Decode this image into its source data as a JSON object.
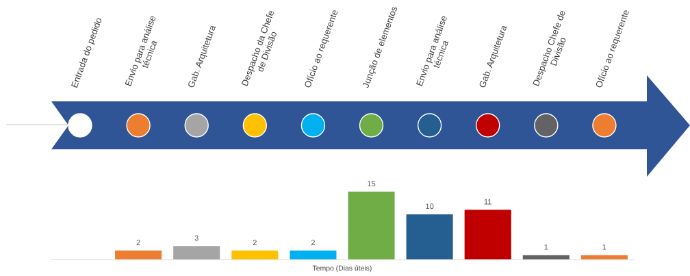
{
  "chart_data": {
    "type": "bar",
    "categories": [
      "Entrada do pedido",
      "Envio para análise\ntécnica",
      "Gab. Arquitetura",
      "Despacho da Chefe\nde Divisão",
      "Ofício ao requerente",
      "Junção de elementos",
      "Envio para análise\ntécnica",
      "Gab. Arquitetura",
      "Despacho Chefe de\nDivisão",
      "Ofício ao requerente"
    ],
    "values": [
      null,
      2,
      3,
      2,
      2,
      15,
      10,
      11,
      1,
      1
    ],
    "colors": [
      "#ffffff",
      "#ed7d31",
      "#a5a5a5",
      "#ffc000",
      "#00b0f0",
      "#70ad47",
      "#255e91",
      "#c00000",
      "#636363",
      "#ed7d31"
    ],
    "xlabel": "Tempo (Dias úteis)",
    "data_labels": true
  }
}
